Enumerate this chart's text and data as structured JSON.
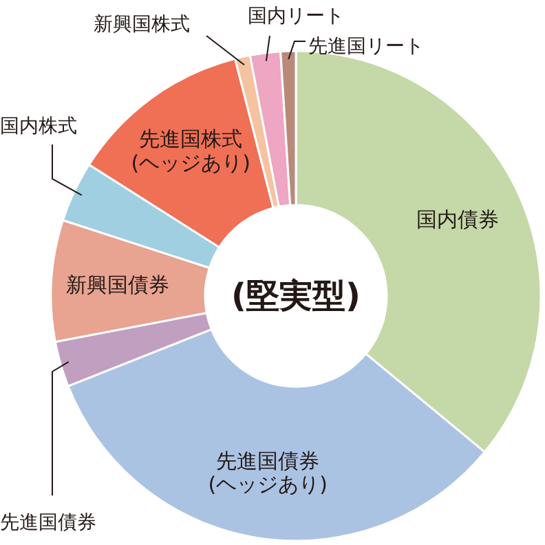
{
  "chart_data": {
    "type": "donut",
    "title": "(堅実型)",
    "categories": [
      "国内債券",
      "先進国債券\n(ヘッジあり)",
      "先進国債券",
      "新興国債券",
      "国内株式",
      "先進国株式\n(ヘッジあり)",
      "新興国株式",
      "国内リート",
      "先進国リート"
    ],
    "values": [
      36,
      33,
      3,
      8,
      4,
      12,
      1,
      2,
      1
    ],
    "colors": [
      "#c5d8a8",
      "#abc3e3",
      "#c19fc1",
      "#e8a391",
      "#9fcfe0",
      "#ef7055",
      "#f5c3a0",
      "#eea6c2",
      "#b98a7a"
    ]
  }
}
